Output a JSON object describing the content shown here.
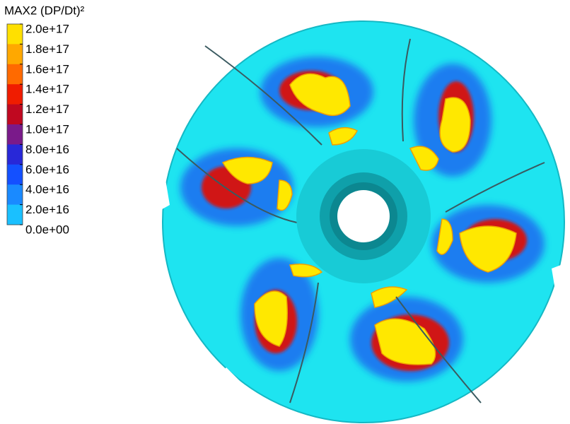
{
  "legend": {
    "title": "MAX2 (DP/Dt)²",
    "labels": [
      "2.0e+17",
      "1.8e+17",
      "1.6e+17",
      "1.4e+17",
      "1.2e+17",
      "1.0e+17",
      "8.0e+16",
      "6.0e+16",
      "4.0e+16",
      "2.0e+16",
      "0.0e+00"
    ]
  }
}
